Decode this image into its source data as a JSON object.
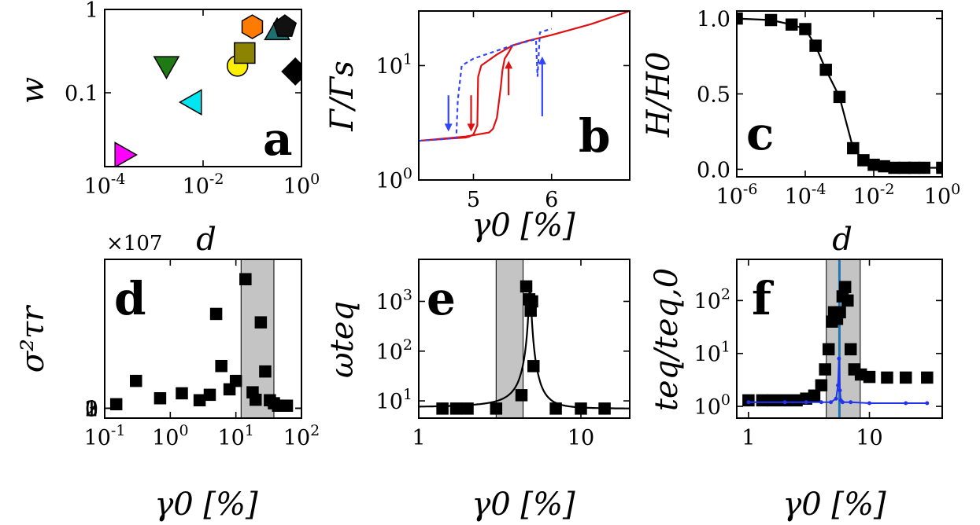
{
  "chart_data": [
    {
      "panel": "a",
      "type": "scatter",
      "xlabel": "d",
      "ylabel": "w",
      "xscale": "log",
      "yscale": "log",
      "xlim": [
        0.0001,
        1
      ],
      "ylim": [
        0.013,
        1
      ],
      "xticks": [
        "10-4",
        "10-2",
        "100"
      ],
      "yticks": [
        "1",
        "0.1"
      ],
      "points": [
        {
          "x": 0.00025,
          "y": 0.018,
          "marker": "triangle-right",
          "color": "#ff00ff"
        },
        {
          "x": 0.0018,
          "y": 0.21,
          "marker": "triangle-down",
          "color": "#1e7a12"
        },
        {
          "x": 0.006,
          "y": 0.077,
          "marker": "triangle-left",
          "color": "#00e5f0"
        },
        {
          "x": 0.05,
          "y": 0.21,
          "marker": "circle",
          "color": "#ffef00"
        },
        {
          "x": 0.07,
          "y": 0.3,
          "marker": "square",
          "color": "#8c8400"
        },
        {
          "x": 0.1,
          "y": 0.62,
          "marker": "hexagon",
          "color": "#ff7a00"
        },
        {
          "x": 0.32,
          "y": 0.56,
          "marker": "triangle-up",
          "color": "#1e7070"
        },
        {
          "x": 0.46,
          "y": 0.62,
          "marker": "pentagon",
          "color": "#111111"
        },
        {
          "x": 0.75,
          "y": 0.18,
          "marker": "diamond",
          "color": "#000000"
        }
      ]
    },
    {
      "panel": "b",
      "type": "line",
      "xlabel": "γ0 [%]",
      "ylabel": "Γ/Γs",
      "xscale": "linear",
      "yscale": "log",
      "xlim": [
        4.3,
        7.0
      ],
      "ylim": [
        1,
        30
      ],
      "xticks": [
        "5",
        "6"
      ],
      "yticks": [
        "100",
        "101"
      ],
      "series": [
        {
          "color": "#e01010",
          "style": "solid",
          "x": [
            4.3,
            4.7,
            4.9,
            4.95,
            5.0,
            5.05,
            5.06,
            5.1,
            5.3,
            5.5,
            5.7,
            6.0,
            6.5,
            7.0
          ],
          "y": [
            2.2,
            2.3,
            2.35,
            2.4,
            2.5,
            3.0,
            8.0,
            10.0,
            12.5,
            15.0,
            16.5,
            18.5,
            23.0,
            30.0
          ]
        },
        {
          "color": "#e01010",
          "style": "solid",
          "x": [
            4.3,
            4.9,
            5.2,
            5.25,
            5.3,
            5.35,
            5.37,
            5.4,
            5.45,
            5.5,
            5.7
          ],
          "y": [
            2.2,
            2.4,
            2.6,
            2.8,
            3.5,
            6.5,
            9.0,
            11.5,
            13.0,
            15.0,
            16.5
          ]
        },
        {
          "color": "#3344ff",
          "style": "dashed",
          "x": [
            4.3,
            4.7,
            4.78,
            4.8,
            4.85,
            5.0,
            5.5,
            5.8,
            5.82,
            5.85,
            6.0
          ],
          "y": [
            2.2,
            2.3,
            2.32,
            5.0,
            10.0,
            11.5,
            15.0,
            17.0,
            8.0,
            19.5,
            21.0
          ]
        }
      ],
      "arrows": [
        {
          "x": 4.68,
          "direction": "down",
          "color": "#3344ff"
        },
        {
          "x": 4.97,
          "direction": "down",
          "color": "#e01010"
        },
        {
          "x": 5.45,
          "direction": "up",
          "color": "#e01010"
        },
        {
          "x": 5.88,
          "direction": "up",
          "color": "#3344ff"
        }
      ]
    },
    {
      "panel": "c",
      "type": "line",
      "xlabel": "d",
      "ylabel": "H/H0",
      "xscale": "log",
      "yscale": "linear",
      "xlim": [
        1e-06,
        1
      ],
      "ylim": [
        -0.05,
        1.05
      ],
      "xticks": [
        "10-6",
        "10-4",
        "10-2",
        "100"
      ],
      "yticks": [
        "0.0",
        "0.5",
        "1.0"
      ],
      "x": [
        1e-06,
        1e-05,
        4e-05,
        0.0001,
        0.0002,
        0.0004,
        0.001,
        0.0025,
        0.005,
        0.01,
        0.02,
        0.04,
        0.08,
        0.15,
        0.3,
        1.0
      ],
      "y": [
        1.0,
        0.99,
        0.96,
        0.93,
        0.82,
        0.66,
        0.48,
        0.14,
        0.06,
        0.03,
        0.02,
        0.01,
        0.01,
        0.01,
        0.01,
        0.01
      ]
    },
    {
      "panel": "d",
      "type": "scatter",
      "xlabel": "γ0 [%]",
      "ylabel": "σ²τr",
      "xscale": "log",
      "yscale": "linear",
      "xlim": [
        0.1,
        100
      ],
      "ylim": [
        -2000000,
        30000000
      ],
      "multiplier": "×107",
      "xticks": [
        "10-1",
        "100",
        "101",
        "102"
      ],
      "yticks": [
        "0",
        "1",
        "2",
        "3"
      ],
      "shaded_region": [
        12,
        38
      ],
      "x": [
        0.15,
        0.3,
        0.7,
        1.5,
        2.8,
        4.0,
        5.0,
        6.0,
        8.0,
        10.0,
        14.0,
        18.0,
        20.0,
        24.0,
        28.0,
        33.0,
        38.0,
        44.0,
        52.0,
        60.0
      ],
      "y": [
        800000,
        5500000,
        2000000,
        3000000,
        1600000,
        2700000,
        19000000,
        8500000,
        3800000,
        5500000,
        26000000,
        3200000,
        1700000,
        17300000,
        7400000,
        1600000,
        1000000,
        500000,
        500000,
        500000
      ]
    },
    {
      "panel": "e",
      "type": "scatter",
      "xlabel": "γ0 [%]",
      "ylabel": "ωteq",
      "xscale": "log",
      "yscale": "log",
      "xlim": [
        1,
        20
      ],
      "ylim": [
        4.5,
        7000
      ],
      "xticks": [
        "1",
        "10"
      ],
      "yticks": [
        "101",
        "102",
        "103"
      ],
      "shaded_region": [
        3.0,
        4.4
      ],
      "x": [
        1.4,
        1.7,
        2.0,
        3.0,
        4.3,
        4.6,
        4.8,
        4.9,
        5.0,
        5.1,
        7.0,
        10.0,
        14.0
      ],
      "y": [
        7.0,
        7.0,
        7.0,
        7.0,
        13.0,
        2000.0,
        1100.0,
        650.0,
        1000.0,
        50.0,
        7.0,
        7.0,
        7.0
      ],
      "fit_curve": true
    },
    {
      "panel": "f",
      "type": "scatter",
      "xlabel": "γ0 [%]",
      "ylabel": "teq/teq,0",
      "xscale": "log",
      "yscale": "log",
      "xlim": [
        0.8,
        40
      ],
      "ylim": [
        0.6,
        600
      ],
      "xticks": [
        "1",
        "10"
      ],
      "yticks": [
        "100",
        "101",
        "102"
      ],
      "shaded_region": [
        4.4,
        8.4
      ],
      "vertical_line": {
        "x": 5.65,
        "color": "#1f78b4"
      },
      "series": [
        {
          "color": "#000000",
          "marker": "square",
          "x": [
            1.0,
            1.3,
            1.6,
            2.0,
            2.5,
            3.0,
            3.5,
            4.0,
            4.3,
            4.6,
            4.9,
            5.1,
            5.4,
            5.7,
            6.0,
            6.3,
            6.6,
            7.0,
            7.5,
            8.5,
            10.0,
            14.0,
            20.0,
            30.0
          ],
          "y": [
            1.3,
            1.3,
            1.3,
            1.3,
            1.3,
            1.4,
            1.6,
            2.5,
            5.0,
            12.0,
            40.0,
            60.0,
            45.0,
            60.0,
            120.0,
            180.0,
            100.0,
            12.0,
            5.0,
            4.0,
            3.6,
            3.5,
            3.5,
            3.5
          ]
        },
        {
          "color": "#2233ee",
          "marker": "dot",
          "x": [
            1.0,
            2.0,
            3.0,
            4.0,
            4.8,
            5.3,
            5.5,
            5.6,
            5.7,
            5.8,
            6.0,
            7.0,
            10.0,
            20.0,
            30.0
          ],
          "y": [
            1.2,
            1.2,
            1.2,
            1.2,
            1.2,
            1.4,
            2.5,
            8.0,
            2.0,
            1.3,
            1.2,
            1.2,
            1.15,
            1.15,
            1.15
          ]
        }
      ]
    }
  ]
}
